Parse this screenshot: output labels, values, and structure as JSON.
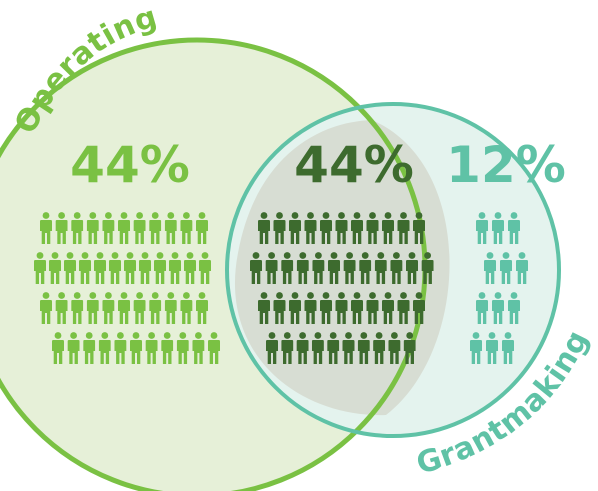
{
  "colors": {
    "operating": "#7ac143",
    "operating_fill": "#e6f0d8",
    "overlap": "#3d6b2e",
    "overlap_fill": "#d7ddd3",
    "grantmaking": "#5fc2a6",
    "grantmaking_fill": "#e4f3ee"
  },
  "labels": {
    "operating": "Operating",
    "grantmaking": "Grantmaking"
  },
  "groups": {
    "operating": {
      "percent_text": "44%",
      "value": 44
    },
    "overlap": {
      "percent_text": "44%",
      "value": 44
    },
    "grantmaking": {
      "percent_text": "12%",
      "value": 12
    }
  },
  "icon": "person-icon"
}
